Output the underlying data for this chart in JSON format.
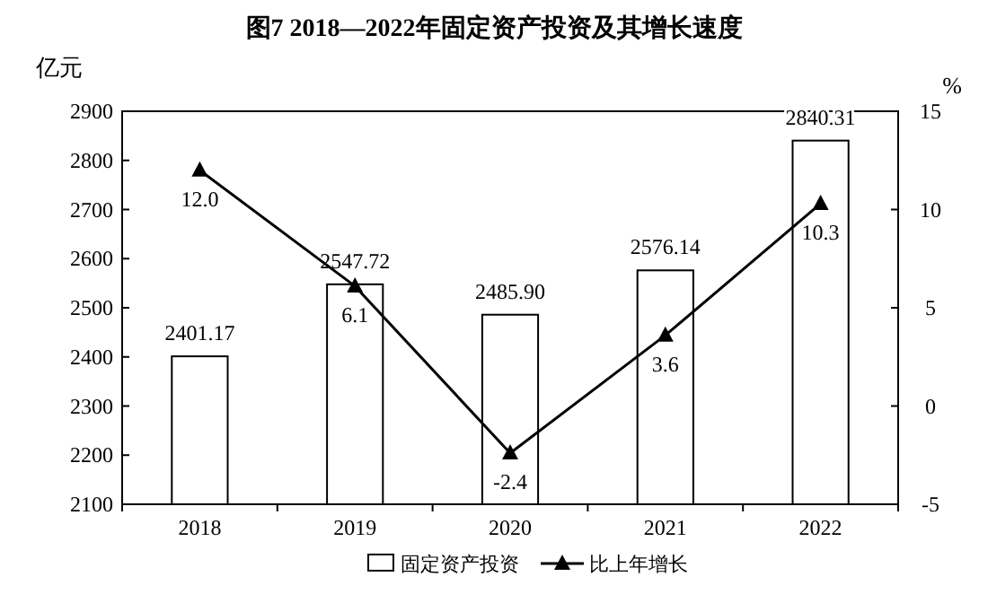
{
  "chart_data": {
    "type": "bar",
    "title": "图7 2018—2022年固定资产投资及其增长速度",
    "ylabel": "亿元",
    "y2label": "%",
    "categories": [
      "2018",
      "2019",
      "2020",
      "2021",
      "2022"
    ],
    "series": [
      {
        "name": "固定资产投资",
        "color": "#ffffff",
        "values": [
          2401.17,
          2547.72,
          2485.9,
          2576.14,
          2840.31
        ],
        "value_labels": [
          "2401.17",
          "2547.72",
          "2485.90",
          "2576.14",
          "2840.31"
        ]
      },
      {
        "name": "比上年增长",
        "type": "line",
        "axis": "y2",
        "color": "#000000",
        "values": [
          12.0,
          6.1,
          -2.4,
          3.6,
          10.3
        ],
        "value_labels": [
          "12.0",
          "6.1",
          "-2.4",
          "3.6",
          "10.3"
        ]
      }
    ],
    "ylim": [
      2100,
      2900
    ],
    "yticks": [
      2100,
      2200,
      2300,
      2400,
      2500,
      2600,
      2700,
      2800,
      2900
    ],
    "y2lim": [
      -5,
      15
    ],
    "y2ticks": [
      -5,
      0,
      5,
      10,
      15
    ],
    "marker": "triangle",
    "line_style": "solid",
    "legend": "bottom",
    "grid": false
  }
}
